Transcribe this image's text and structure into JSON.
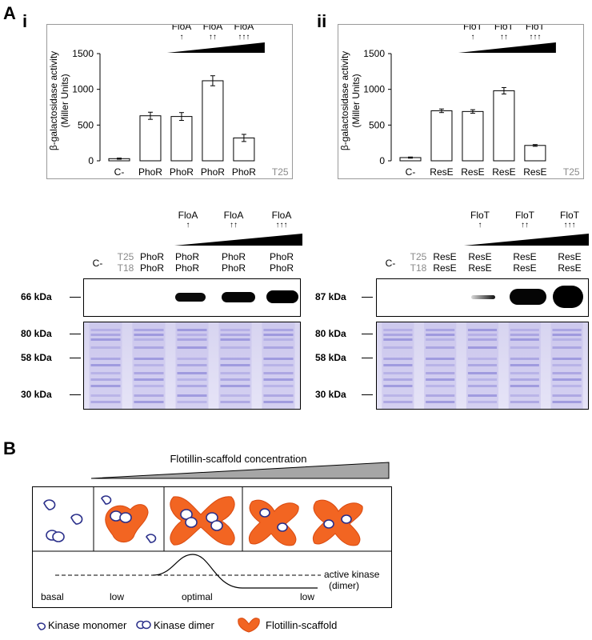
{
  "panel_a": {
    "letter": "A",
    "i": {
      "letter": "i",
      "ylabel_line1": "β-galactosidase activity",
      "ylabel_line2": "(Miller Units)",
      "protein": "FloA",
      "arrows": [
        "↑",
        "↑↑",
        "↑↑↑"
      ],
      "tag_top": "T25",
      "tag_bottom": "T18"
    },
    "ii": {
      "letter": "ii",
      "ylabel_line1": "β-galactosidase activity",
      "ylabel_line2": "(Miller Units)",
      "protein": "FloT",
      "arrows": [
        "↑",
        "↑↑",
        "↑↑↑"
      ],
      "tag_top": "T25",
      "tag_bottom": "T18"
    },
    "blot_i": {
      "lane_neg": "C-",
      "tag_top": "T25",
      "tag_bottom": "T18",
      "kinase": "PhoR",
      "protein": "FloA",
      "arrows": [
        "↑",
        "↑↑",
        "↑↑↑"
      ],
      "western_kda": "66 kDa",
      "gel_kda": [
        "80 kDa",
        "58 kDa",
        "30 kDa"
      ]
    },
    "blot_ii": {
      "lane_neg": "C-",
      "tag_top": "T25",
      "tag_bottom": "T18",
      "kinase": "ResE",
      "protein": "FloT",
      "arrows": [
        "↑",
        "↑↑",
        "↑↑↑"
      ],
      "western_kda": "87 kDa",
      "gel_kda": [
        "80 kDa",
        "58 kDa",
        "30 kDa"
      ]
    }
  },
  "panel_b": {
    "letter": "B",
    "gradient_label": "Flotillin-scaffold concentration",
    "states": [
      "basal",
      "low",
      "optimal",
      "low"
    ],
    "curve_label_line1": "active kinase",
    "curve_label_line2": "(dimer)",
    "legend": {
      "monomer": "Kinase monomer",
      "dimer": "Kinase dimer",
      "scaffold": "Flotillin-scaffold"
    }
  },
  "chart_data": [
    {
      "type": "bar",
      "categories": [
        "C-",
        "PhoR PhoR",
        "PhoR PhoR",
        "PhoR PhoR",
        "PhoR PhoR"
      ],
      "category_line1": [
        "C-",
        "PhoR",
        "PhoR",
        "PhoR",
        "PhoR"
      ],
      "category_line2": [
        "",
        "PhoR",
        "PhoR",
        "PhoR",
        "PhoR"
      ],
      "values": [
        30,
        630,
        620,
        1120,
        320
      ],
      "errors": [
        8,
        50,
        55,
        70,
        50
      ],
      "yticks": [
        0,
        500,
        1000,
        1500
      ],
      "ylim": [
        0,
        1500
      ],
      "ylabel": "β-galactosidase activity (Miller Units)"
    },
    {
      "type": "bar",
      "categories": [
        "C-",
        "ResE ResE",
        "ResE ResE",
        "ResE ResE",
        "ResE ResE"
      ],
      "category_line1": [
        "C-",
        "ResE",
        "ResE",
        "ResE",
        "ResE"
      ],
      "category_line2": [
        "",
        "ResE",
        "ResE",
        "ResE",
        "ResE"
      ],
      "values": [
        45,
        700,
        690,
        980,
        215
      ],
      "errors": [
        8,
        25,
        25,
        45,
        12
      ],
      "yticks": [
        0,
        500,
        1000,
        1500
      ],
      "ylim": [
        0,
        1500
      ],
      "ylabel": "β-galactosidase activity (Miller Units)"
    }
  ]
}
